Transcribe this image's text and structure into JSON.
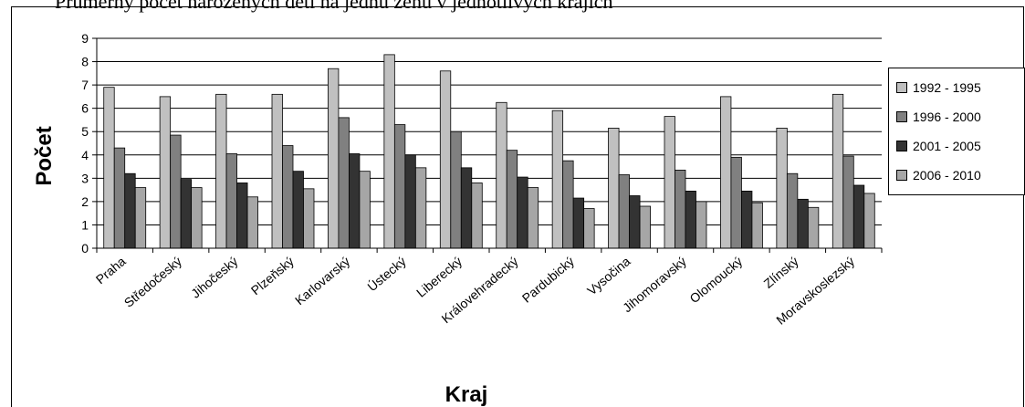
{
  "header": {
    "text": "Průměrný počet narozených dětí na jednu ženu v jednotlivých krajích"
  },
  "chart_data": {
    "type": "bar",
    "xlabel": "Kraj",
    "ylabel": "Počet",
    "ylim": [
      0,
      9
    ],
    "yticks": [
      "0",
      "1",
      "2",
      "3",
      "4",
      "5",
      "6",
      "7",
      "8",
      "9"
    ],
    "grid": true,
    "legend_position": "right",
    "categories": [
      "Praha",
      "Středočeský",
      "Jihočeský",
      "Plzeňský",
      "Karlovarský",
      "Ústecký",
      "Liberecký",
      "Královehradecký",
      "Pardubický",
      "Vysočina",
      "Jihomoravský",
      "Olomoucký",
      "Zlínský",
      "Moravskoslezský"
    ],
    "series": [
      {
        "name": "1992 - 1995",
        "color": "#c0c0c0",
        "values": [
          6.9,
          6.5,
          6.6,
          6.6,
          7.7,
          8.3,
          7.6,
          6.25,
          5.9,
          5.15,
          5.65,
          6.5,
          5.15,
          6.6
        ]
      },
      {
        "name": "1996 - 2000",
        "color": "#808080",
        "values": [
          4.3,
          4.85,
          4.05,
          4.4,
          5.6,
          5.3,
          5.0,
          4.2,
          3.75,
          3.15,
          3.35,
          3.9,
          3.2,
          3.95
        ]
      },
      {
        "name": "2001 - 2005",
        "color": "#333333",
        "values": [
          3.2,
          2.95,
          2.8,
          3.3,
          4.05,
          4.0,
          3.45,
          3.05,
          2.15,
          2.25,
          2.45,
          2.45,
          2.1,
          2.7
        ]
      },
      {
        "name": "2006 - 2010",
        "color": "#a6a6a6",
        "values": [
          2.6,
          2.6,
          2.2,
          2.55,
          3.3,
          3.45,
          2.8,
          2.6,
          1.7,
          1.8,
          2.0,
          1.95,
          1.75,
          2.35
        ]
      }
    ]
  }
}
